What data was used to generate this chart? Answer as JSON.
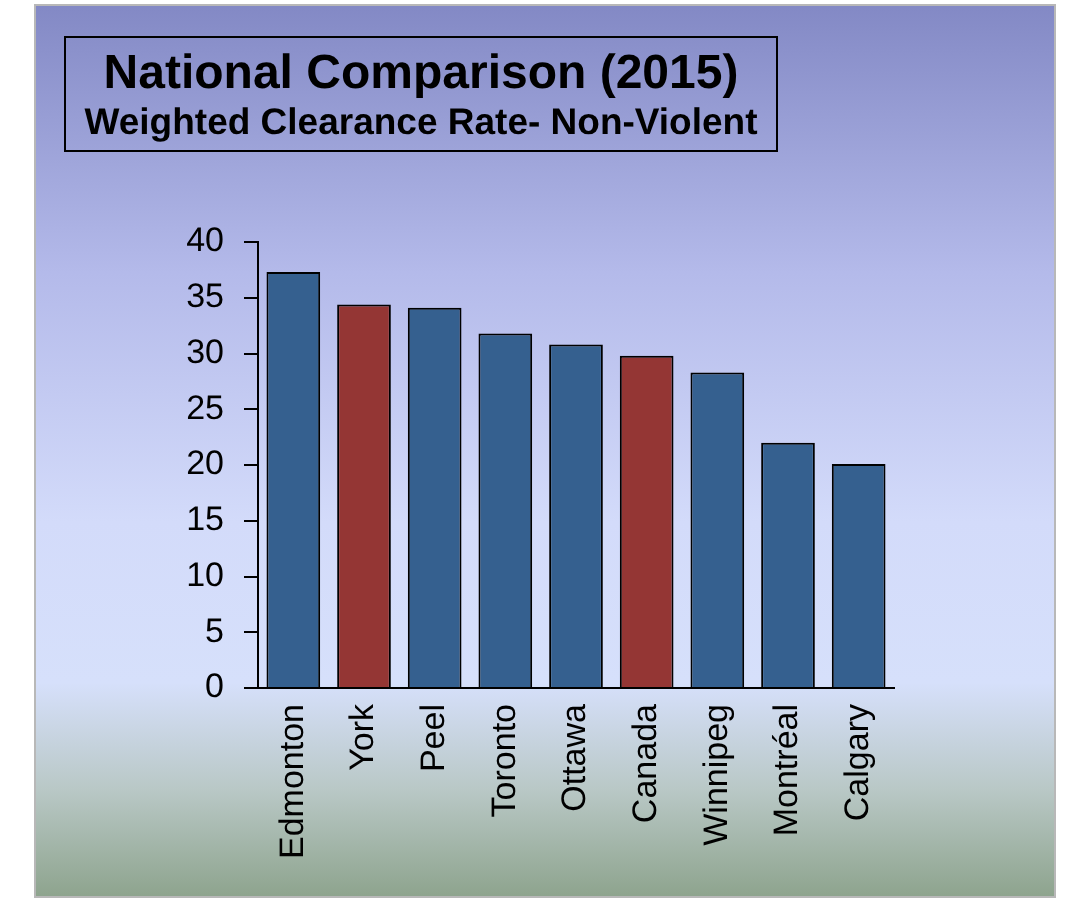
{
  "chart_data": {
    "type": "bar",
    "title": "National Comparison (2015)",
    "subtitle": "Weighted Clearance Rate- Non-Violent",
    "categories": [
      "Edmonton",
      "York",
      "Peel",
      "Toronto",
      "Ottawa",
      "Canada",
      "Winnipeg",
      "Montréal",
      "Calgary"
    ],
    "values": [
      37.3,
      34.4,
      34.1,
      31.8,
      30.8,
      29.8,
      28.3,
      22.0,
      20.1
    ],
    "colors": [
      "#35608f",
      "#943634",
      "#35608f",
      "#35608f",
      "#35608f",
      "#943634",
      "#35608f",
      "#35608f",
      "#35608f"
    ],
    "ylim": [
      0,
      40
    ],
    "yticks": [
      0,
      5,
      10,
      15,
      20,
      25,
      30,
      35,
      40
    ],
    "grid": false
  }
}
